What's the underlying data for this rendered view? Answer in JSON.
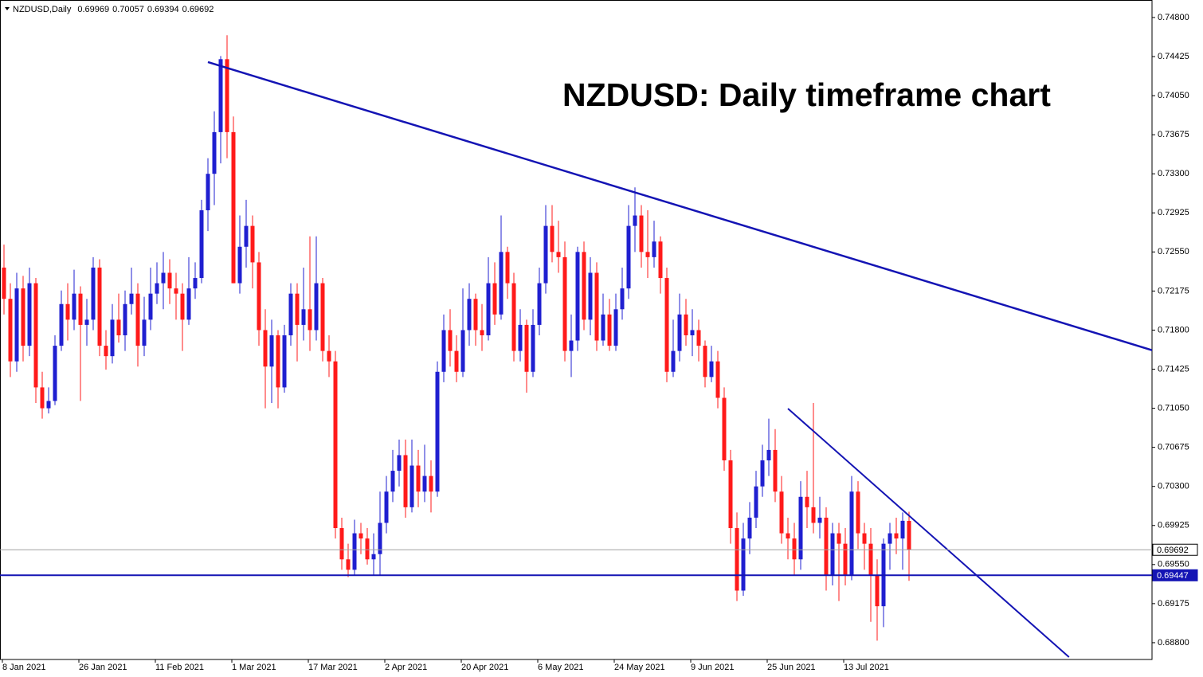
{
  "chart_data": {
    "type": "candlestick",
    "header": {
      "symbol": "NZDUSD,Daily",
      "values": [
        0.69969,
        0.70057,
        0.69394,
        0.69692
      ]
    },
    "title": "NZDUSD: Daily timeframe chart",
    "categories": [
      "8 Jan 2021",
      null,
      null,
      null,
      null,
      null,
      null,
      null,
      null,
      null,
      null,
      null,
      "26 Jan 2021",
      null,
      null,
      null,
      null,
      null,
      null,
      null,
      null,
      null,
      null,
      null,
      "11 Feb 2021",
      null,
      null,
      null,
      null,
      null,
      null,
      null,
      null,
      null,
      null,
      null,
      "1 Mar 2021",
      null,
      null,
      null,
      null,
      null,
      null,
      null,
      null,
      null,
      null,
      null,
      "17 Mar 2021",
      null,
      null,
      null,
      null,
      null,
      null,
      null,
      null,
      null,
      null,
      null,
      "2 Apr 2021",
      null,
      null,
      null,
      null,
      null,
      null,
      null,
      null,
      null,
      null,
      null,
      "20 Apr 2021",
      null,
      null,
      null,
      null,
      null,
      null,
      null,
      null,
      null,
      null,
      null,
      "6 May 2021",
      null,
      null,
      null,
      null,
      null,
      null,
      null,
      null,
      null,
      null,
      null,
      "24 May 2021",
      null,
      null,
      null,
      null,
      null,
      null,
      null,
      null,
      null,
      null,
      null,
      "9 Jun 2021",
      null,
      null,
      null,
      null,
      null,
      null,
      null,
      null,
      null,
      null,
      null,
      "25 Jun 2021",
      null,
      null,
      null,
      null,
      null,
      null,
      null,
      null,
      null,
      null,
      null,
      "13 Jul 2021",
      null,
      null,
      null,
      null,
      null,
      null,
      null,
      null,
      null,
      null
    ],
    "open": [
      0.724,
      0.721,
      0.715,
      0.722,
      0.7165,
      0.7225,
      0.7125,
      0.7105,
      0.7112,
      0.7165,
      0.7205,
      0.719,
      0.7215,
      0.7185,
      0.719,
      0.724,
      0.7165,
      0.7155,
      0.719,
      0.7175,
      0.7205,
      0.7215,
      0.7165,
      0.719,
      0.7215,
      0.7225,
      0.7235,
      0.722,
      0.7215,
      0.719,
      0.722,
      0.723,
      0.7295,
      0.733,
      0.737,
      0.744,
      0.737,
      0.7225,
      0.726,
      0.728,
      0.7245,
      0.718,
      0.7145,
      0.7175,
      0.7125,
      0.7175,
      0.7215,
      0.7185,
      0.72,
      0.718,
      0.7225,
      0.716,
      0.715,
      0.699,
      0.696,
      0.695,
      0.6985,
      0.698,
      0.696,
      0.6965,
      0.6995,
      0.7025,
      0.7045,
      0.706,
      0.701,
      0.705,
      0.7025,
      0.704,
      0.7025,
      0.714,
      0.718,
      0.716,
      0.714,
      0.718,
      0.721,
      0.718,
      0.7175,
      0.7225,
      0.7195,
      0.7255,
      0.7225,
      0.716,
      0.7185,
      0.714,
      0.7185,
      0.7225,
      0.728,
      0.7255,
      0.725,
      0.716,
      0.717,
      0.7255,
      0.719,
      0.7235,
      0.717,
      0.7195,
      0.7165,
      0.72,
      0.722,
      0.728,
      0.729,
      0.7255,
      0.725,
      0.7265,
      0.723,
      0.714,
      0.716,
      0.7195,
      0.7175,
      0.718,
      0.7165,
      0.7135,
      0.715,
      0.7115,
      0.7055,
      0.699,
      0.693,
      0.698,
      0.7,
      0.703,
      0.7055,
      0.7065,
      0.7025,
      0.6985,
      0.698,
      0.696,
      0.702,
      0.701,
      0.6995,
      0.7,
      0.6945,
      0.6985,
      0.6975,
      0.6945,
      0.7025,
      0.6985,
      0.6975,
      0.6945,
      0.6915,
      0.6975,
      0.6985,
      0.698,
      0.69969
    ],
    "high": [
      0.7262,
      0.7225,
      0.7235,
      0.7232,
      0.724,
      0.723,
      0.714,
      0.7125,
      0.7175,
      0.7218,
      0.7225,
      0.7238,
      0.7222,
      0.721,
      0.725,
      0.7248,
      0.718,
      0.7205,
      0.7215,
      0.7218,
      0.724,
      0.7225,
      0.7212,
      0.724,
      0.7245,
      0.7255,
      0.7248,
      0.7235,
      0.7225,
      0.725,
      0.7245,
      0.7305,
      0.7345,
      0.739,
      0.7443,
      0.7463,
      0.7385,
      0.729,
      0.7305,
      0.729,
      0.7255,
      0.72,
      0.719,
      0.718,
      0.7185,
      0.7225,
      0.7225,
      0.724,
      0.727,
      0.727,
      0.723,
      0.7175,
      0.716,
      0.7,
      0.6975,
      0.6998,
      0.6995,
      0.699,
      0.6985,
      0.7025,
      0.704,
      0.7065,
      0.7075,
      0.7075,
      0.7075,
      0.7065,
      0.707,
      0.7055,
      0.715,
      0.7195,
      0.72,
      0.7175,
      0.722,
      0.7225,
      0.7215,
      0.7205,
      0.725,
      0.7245,
      0.729,
      0.726,
      0.7235,
      0.72,
      0.719,
      0.72,
      0.724,
      0.73,
      0.73,
      0.7285,
      0.7265,
      0.7195,
      0.726,
      0.7265,
      0.725,
      0.7245,
      0.7215,
      0.721,
      0.7215,
      0.724,
      0.73,
      0.7317,
      0.73,
      0.7295,
      0.7285,
      0.727,
      0.724,
      0.719,
      0.7215,
      0.721,
      0.72,
      0.719,
      0.717,
      0.7165,
      0.716,
      0.7125,
      0.7065,
      0.7005,
      0.6995,
      0.7015,
      0.7045,
      0.707,
      0.7095,
      0.7085,
      0.704,
      0.7,
      0.6995,
      0.7035,
      0.7045,
      0.711,
      0.702,
      0.701,
      0.6995,
      0.6995,
      0.699,
      0.704,
      0.7035,
      0.6995,
      0.699,
      0.696,
      0.698,
      0.6995,
      0.7,
      0.7005,
      0.70057
    ],
    "low": [
      0.7195,
      0.7135,
      0.714,
      0.715,
      0.7155,
      0.711,
      0.7095,
      0.71,
      0.7108,
      0.716,
      0.717,
      0.718,
      0.7112,
      0.7165,
      0.718,
      0.7155,
      0.7142,
      0.7148,
      0.7168,
      0.716,
      0.7195,
      0.7145,
      0.7155,
      0.718,
      0.7205,
      0.72,
      0.7205,
      0.719,
      0.716,
      0.7185,
      0.721,
      0.7225,
      0.7275,
      0.73,
      0.734,
      0.7345,
      0.7225,
      0.7215,
      0.724,
      0.722,
      0.7165,
      0.7105,
      0.711,
      0.7105,
      0.712,
      0.7165,
      0.715,
      0.717,
      0.716,
      0.717,
      0.715,
      0.7135,
      0.698,
      0.695,
      0.6943,
      0.6945,
      0.6965,
      0.6955,
      0.6945,
      0.6945,
      0.6985,
      0.7015,
      0.703,
      0.7,
      0.7005,
      0.701,
      0.7015,
      0.7005,
      0.702,
      0.713,
      0.7145,
      0.713,
      0.7135,
      0.7165,
      0.7165,
      0.716,
      0.717,
      0.7185,
      0.719,
      0.721,
      0.715,
      0.715,
      0.712,
      0.7135,
      0.7175,
      0.7215,
      0.7245,
      0.7235,
      0.715,
      0.7135,
      0.716,
      0.718,
      0.7175,
      0.716,
      0.7165,
      0.716,
      0.716,
      0.719,
      0.721,
      0.7255,
      0.724,
      0.723,
      0.724,
      0.7215,
      0.713,
      0.7135,
      0.715,
      0.7165,
      0.7155,
      0.715,
      0.7125,
      0.713,
      0.7105,
      0.7045,
      0.6975,
      0.692,
      0.6925,
      0.6965,
      0.699,
      0.702,
      0.704,
      0.7015,
      0.6975,
      0.696,
      0.6945,
      0.695,
      0.699,
      0.6985,
      0.698,
      0.693,
      0.6935,
      0.692,
      0.6935,
      0.694,
      0.697,
      0.695,
      0.69,
      0.6882,
      0.6895,
      0.695,
      0.6965,
      0.695,
      0.69394
    ],
    "close": [
      0.721,
      0.715,
      0.722,
      0.7165,
      0.7225,
      0.7125,
      0.7105,
      0.7112,
      0.7165,
      0.7205,
      0.719,
      0.7215,
      0.7185,
      0.719,
      0.724,
      0.7165,
      0.7155,
      0.719,
      0.7175,
      0.7205,
      0.7215,
      0.7165,
      0.719,
      0.7215,
      0.7225,
      0.7235,
      0.722,
      0.7215,
      0.719,
      0.722,
      0.723,
      0.7295,
      0.733,
      0.737,
      0.744,
      0.737,
      0.7225,
      0.726,
      0.728,
      0.7245,
      0.718,
      0.7145,
      0.7175,
      0.7125,
      0.7175,
      0.7215,
      0.7185,
      0.72,
      0.718,
      0.7225,
      0.716,
      0.715,
      0.699,
      0.696,
      0.695,
      0.6985,
      0.698,
      0.696,
      0.6965,
      0.6995,
      0.7025,
      0.7045,
      0.706,
      0.701,
      0.705,
      0.7025,
      0.704,
      0.7025,
      0.714,
      0.718,
      0.716,
      0.714,
      0.718,
      0.721,
      0.718,
      0.7175,
      0.7225,
      0.7195,
      0.7255,
      0.7225,
      0.716,
      0.7185,
      0.714,
      0.7185,
      0.7225,
      0.728,
      0.7255,
      0.725,
      0.716,
      0.717,
      0.7255,
      0.719,
      0.7235,
      0.717,
      0.7195,
      0.7165,
      0.72,
      0.722,
      0.728,
      0.729,
      0.7255,
      0.725,
      0.7265,
      0.723,
      0.714,
      0.716,
      0.7195,
      0.7175,
      0.718,
      0.7165,
      0.7135,
      0.715,
      0.7115,
      0.7055,
      0.699,
      0.693,
      0.698,
      0.7,
      0.703,
      0.7055,
      0.7065,
      0.7025,
      0.6985,
      0.698,
      0.696,
      0.702,
      0.701,
      0.6995,
      0.7,
      0.6945,
      0.6985,
      0.6975,
      0.6945,
      0.7025,
      0.6985,
      0.6975,
      0.6945,
      0.6915,
      0.6975,
      0.6985,
      0.698,
      0.6997,
      0.69692
    ],
    "up_color": "#1f1fd0",
    "down_color": "#ff1a1a",
    "ylim": [
      0.68639,
      0.74968
    ],
    "yticks": [
      {
        "value": 0.748,
        "label": "0.74800"
      },
      0.74425,
      {
        "value": 0.7405,
        "label": "0.74050"
      },
      0.73675,
      {
        "value": 0.733,
        "label": "0.73300"
      },
      0.72925,
      {
        "value": 0.7255,
        "label": "0.72550"
      },
      0.72175,
      {
        "value": 0.718,
        "label": "0.71800"
      },
      0.71425,
      {
        "value": 0.7105,
        "label": "0.71050"
      },
      0.70675,
      {
        "value": 0.703,
        "label": "0.70300"
      },
      0.69925,
      {
        "value": 0.6955,
        "label": "0.69550"
      },
      0.69175,
      {
        "value": 0.688,
        "label": "0.68800"
      }
    ],
    "hlines": [
      {
        "value": 0.69692,
        "color": "#a0a0a0"
      },
      {
        "value": 0.69447,
        "color": "#1414b4"
      }
    ],
    "trendlines": [
      {
        "x": [
          32,
          180.25
        ],
        "y": [
          0.74372,
          0.71605
        ],
        "color": "#1414b4"
      },
      {
        "x": [
          123,
          167.1
        ],
        "y": [
          0.71047,
          0.68662
        ],
        "color": "#1414b4"
      }
    ]
  }
}
